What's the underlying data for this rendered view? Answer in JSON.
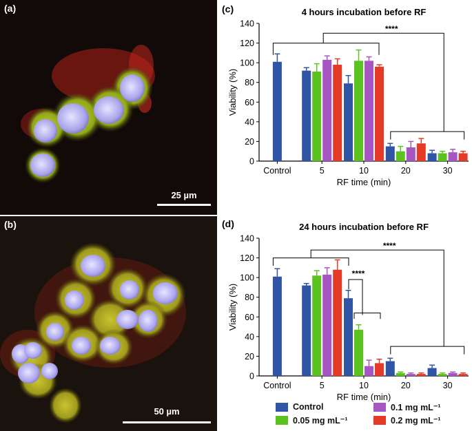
{
  "panels": {
    "a": {
      "tag": "(a)",
      "scale_label": "25 µm"
    },
    "b": {
      "tag": "(b)",
      "scale_label": "50 µm"
    },
    "c": {
      "tag": "(c)"
    },
    "d": {
      "tag": "(d)"
    }
  },
  "legend": {
    "items": [
      {
        "label": "Control",
        "color": "#2f55a4"
      },
      {
        "label": "0.1 mg mL⁻¹",
        "color": "#a855c4"
      },
      {
        "label": "0.05 mg mL⁻¹",
        "color": "#5cc21f"
      },
      {
        "label": "0.2 mg mL⁻¹",
        "color": "#e53a28"
      }
    ]
  },
  "colors": {
    "control": "#2f55a4",
    "dose_005": "#5cc21f",
    "dose_01": "#a855c4",
    "dose_02": "#e53a28",
    "cell_body": "#a8c020",
    "nucleus": "#b8b4f0",
    "membrane_stain": "#d82a1e"
  },
  "chart_data": [
    {
      "type": "bar",
      "title": "4 hours incubation before RF",
      "xlabel": "RF time (min)",
      "ylabel": "Viability (%)",
      "ylim": [
        0,
        140
      ],
      "yticks": [
        "0",
        "20",
        "40",
        "60",
        "80",
        "100",
        "120",
        "140"
      ],
      "categories": [
        "Control",
        "5",
        "10",
        "20",
        "30"
      ],
      "grid": false,
      "series": [
        {
          "name": "Control",
          "color": "#2f55a4",
          "values": [
            101,
            92,
            79,
            15,
            8
          ],
          "errors": [
            8,
            3,
            8,
            3,
            3
          ]
        },
        {
          "name": "0.05 mg mL⁻¹",
          "color": "#5cc21f",
          "values": [
            null,
            91,
            102,
            10,
            8
          ],
          "errors": [
            null,
            8,
            11,
            5,
            2
          ]
        },
        {
          "name": "0.1 mg mL⁻¹",
          "color": "#a855c4",
          "values": [
            null,
            103,
            102,
            14,
            9
          ],
          "errors": [
            null,
            4,
            4,
            6,
            3
          ]
        },
        {
          "name": "0.2 mg mL⁻¹",
          "color": "#e53a28",
          "values": [
            null,
            98,
            96,
            18,
            8
          ],
          "errors": [
            null,
            6,
            2,
            5,
            2
          ]
        }
      ],
      "annotations": [
        {
          "label": "****",
          "between": [
            [
              "Control",
              "5",
              "10"
            ],
            [
              "20",
              "30"
            ]
          ]
        }
      ]
    },
    {
      "type": "bar",
      "title": "24 hours incubation before RF",
      "xlabel": "RF time (min)",
      "ylabel": "Viability (%)",
      "ylim": [
        0,
        140
      ],
      "yticks": [
        "0",
        "20",
        "40",
        "60",
        "80",
        "100",
        "120",
        "140"
      ],
      "categories": [
        "Control",
        "5",
        "10",
        "20",
        "30"
      ],
      "grid": false,
      "series": [
        {
          "name": "Control",
          "color": "#2f55a4",
          "values": [
            101,
            92,
            79,
            15,
            8
          ],
          "errors": [
            8,
            2,
            8,
            3,
            3
          ]
        },
        {
          "name": "0.05 mg mL⁻¹",
          "color": "#5cc21f",
          "values": [
            null,
            102,
            47,
            3,
            2
          ],
          "errors": [
            null,
            5,
            5,
            1,
            1
          ]
        },
        {
          "name": "0.1 mg mL⁻¹",
          "color": "#a855c4",
          "values": [
            null,
            103,
            10,
            2,
            3
          ],
          "errors": [
            null,
            7,
            6,
            1,
            1
          ]
        },
        {
          "name": "0.2 mg mL⁻¹",
          "color": "#e53a28",
          "values": [
            null,
            108,
            13,
            2,
            2
          ],
          "errors": [
            null,
            10,
            4,
            1,
            1
          ]
        }
      ],
      "annotations": [
        {
          "label": "****",
          "between": [
            [
              "Control",
              "5"
            ],
            [
              "20",
              "30"
            ]
          ]
        },
        {
          "label": "****",
          "between": [
            [
              "10 Control"
            ],
            [
              "10 0.05 mg mL⁻¹ to 0.2 mg mL⁻¹"
            ]
          ]
        }
      ]
    }
  ]
}
